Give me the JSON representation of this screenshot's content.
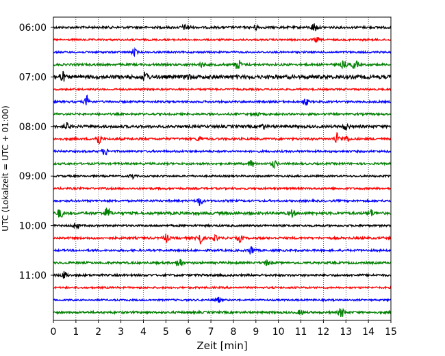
{
  "chart_data": {
    "type": "line",
    "title": "",
    "xlabel": "Zeit  [min]",
    "ylabel": "UTC (Lokalzeit = UTC + 01:00)",
    "xlim": [
      0,
      15
    ],
    "xticks": [
      "0",
      "1",
      "2",
      "3",
      "4",
      "5",
      "6",
      "7",
      "8",
      "9",
      "10",
      "11",
      "12",
      "13",
      "14",
      "15"
    ],
    "ytick_labels": [
      "06:00",
      "07:00",
      "08:00",
      "09:00",
      "10:00",
      "11:00"
    ],
    "grid": "vertical dotted at each minute",
    "trace_start_hour": "06:00",
    "trace_interval_min": 15,
    "trace_colors": [
      "#000000",
      "#ff0000",
      "#0000ff",
      "#008000"
    ],
    "traces": [
      {
        "t": "06:00",
        "color": "#000000",
        "amp": 1.0,
        "events": [
          [
            11.6,
            4
          ],
          [
            9.0,
            2
          ],
          [
            6.0,
            1.8
          ],
          [
            5.8,
            1.6
          ]
        ]
      },
      {
        "t": "06:15",
        "color": "#ff0000",
        "amp": 0.8,
        "events": [
          [
            11.7,
            2
          ]
        ]
      },
      {
        "t": "06:30",
        "color": "#0000ff",
        "amp": 0.8,
        "events": [
          [
            3.6,
            3
          ]
        ]
      },
      {
        "t": "06:45",
        "color": "#008000",
        "amp": 1.0,
        "events": [
          [
            8.2,
            5
          ],
          [
            13.4,
            4
          ],
          [
            12.9,
            3
          ],
          [
            6.6,
            2
          ]
        ]
      },
      {
        "t": "07:00",
        "color": "#000000",
        "amp": 1.6,
        "events": [
          [
            0.4,
            4
          ],
          [
            4.1,
            4
          ],
          [
            6.0,
            2
          ]
        ]
      },
      {
        "t": "07:15",
        "color": "#ff0000",
        "amp": 0.8,
        "events": []
      },
      {
        "t": "07:30",
        "color": "#0000ff",
        "amp": 0.9,
        "events": [
          [
            1.5,
            5
          ],
          [
            11.2,
            3
          ]
        ]
      },
      {
        "t": "07:45",
        "color": "#008000",
        "amp": 0.9,
        "events": [
          [
            9.0,
            2
          ]
        ]
      },
      {
        "t": "08:00",
        "color": "#000000",
        "amp": 1.2,
        "events": [
          [
            0.6,
            3
          ],
          [
            13.0,
            2.5
          ],
          [
            9.3,
            2
          ]
        ]
      },
      {
        "t": "08:15",
        "color": "#ff0000",
        "amp": 1.0,
        "events": [
          [
            2.0,
            5
          ],
          [
            12.6,
            5
          ],
          [
            13.0,
            3
          ],
          [
            6.5,
            2
          ]
        ]
      },
      {
        "t": "08:30",
        "color": "#0000ff",
        "amp": 0.9,
        "events": [
          [
            2.3,
            3
          ]
        ]
      },
      {
        "t": "08:45",
        "color": "#008000",
        "amp": 0.9,
        "events": [
          [
            8.8,
            3
          ],
          [
            9.8,
            3
          ]
        ]
      },
      {
        "t": "09:00",
        "color": "#000000",
        "amp": 0.8,
        "events": [
          [
            3.5,
            2
          ]
        ]
      },
      {
        "t": "09:15",
        "color": "#ff0000",
        "amp": 0.9,
        "events": []
      },
      {
        "t": "09:30",
        "color": "#0000ff",
        "amp": 0.9,
        "events": [
          [
            6.5,
            4
          ]
        ]
      },
      {
        "t": "09:45",
        "color": "#008000",
        "amp": 1.2,
        "events": [
          [
            0.3,
            4
          ],
          [
            2.4,
            5
          ],
          [
            10.6,
            3
          ],
          [
            14.1,
            3
          ]
        ]
      },
      {
        "t": "10:00",
        "color": "#000000",
        "amp": 0.9,
        "events": [
          [
            1.0,
            3
          ]
        ]
      },
      {
        "t": "10:15",
        "color": "#ff0000",
        "amp": 1.0,
        "events": [
          [
            6.5,
            6
          ],
          [
            5.0,
            4
          ],
          [
            8.3,
            3
          ],
          [
            7.2,
            2
          ]
        ]
      },
      {
        "t": "10:30",
        "color": "#0000ff",
        "amp": 0.9,
        "events": [
          [
            8.8,
            4
          ]
        ]
      },
      {
        "t": "10:45",
        "color": "#008000",
        "amp": 1.0,
        "events": [
          [
            5.6,
            5
          ],
          [
            9.5,
            2
          ]
        ]
      },
      {
        "t": "11:00",
        "color": "#000000",
        "amp": 1.0,
        "events": [
          [
            0.5,
            3
          ]
        ]
      },
      {
        "t": "11:15",
        "color": "#ff0000",
        "amp": 0.8,
        "events": []
      },
      {
        "t": "11:30",
        "color": "#0000ff",
        "amp": 0.8,
        "events": [
          [
            7.3,
            2.5
          ]
        ]
      },
      {
        "t": "11:45",
        "color": "#008000",
        "amp": 1.0,
        "events": [
          [
            12.8,
            4
          ],
          [
            11.0,
            2
          ]
        ]
      }
    ]
  }
}
